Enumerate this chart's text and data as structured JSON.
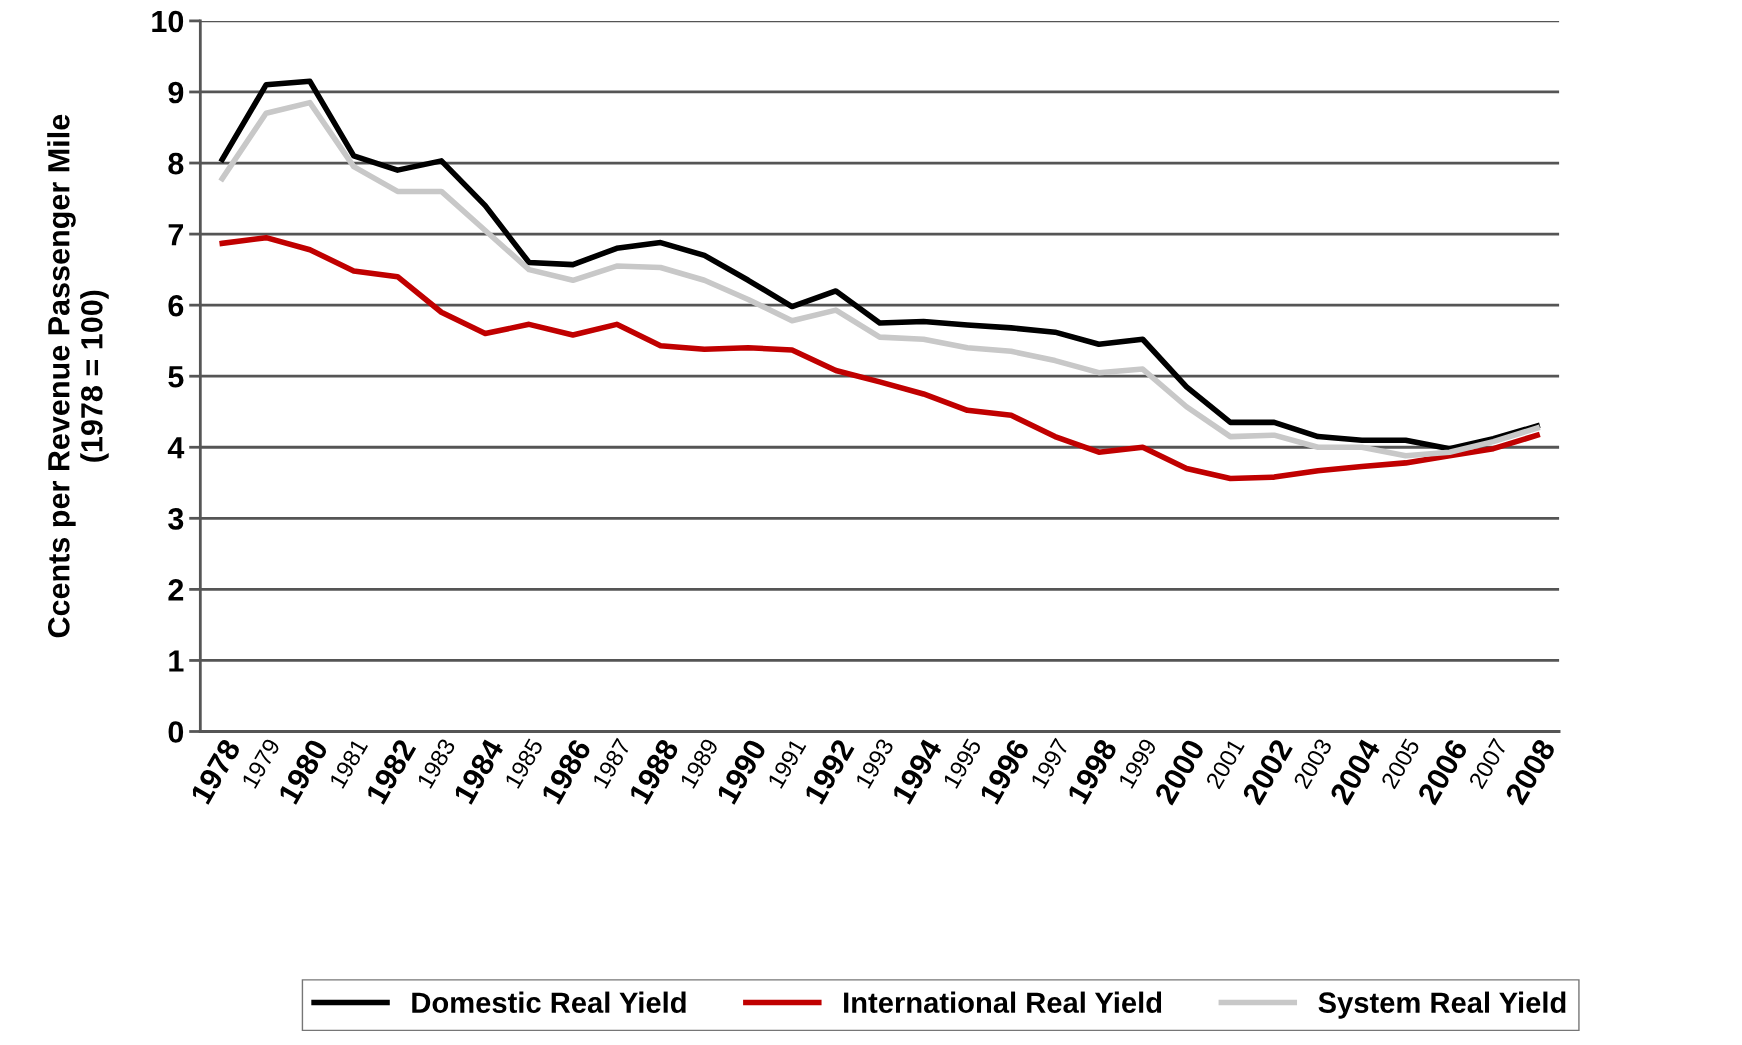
{
  "chart_data": {
    "type": "line",
    "ylabel": "Ccents per Revenue Passenger Mile\n(1978 = 100)",
    "categories": [
      "1978",
      "1979",
      "1980",
      "1981",
      "1982",
      "1983",
      "1984",
      "1985",
      "1986",
      "1987",
      "1988",
      "1989",
      "1990",
      "1991",
      "1992",
      "1993",
      "1994",
      "1995",
      "1996",
      "1997",
      "1998",
      "1999",
      "2000",
      "2001",
      "2002",
      "2003",
      "2004",
      "2005",
      "2006",
      "2007",
      "2008"
    ],
    "series": [
      {
        "name": "Domestic Real Yield",
        "color": "#000000",
        "values": [
          8.05,
          9.1,
          9.15,
          8.1,
          7.9,
          8.03,
          7.4,
          6.6,
          6.57,
          6.8,
          6.88,
          6.7,
          6.35,
          5.98,
          6.2,
          5.75,
          5.77,
          5.72,
          5.68,
          5.62,
          5.45,
          5.52,
          4.85,
          4.35,
          4.35,
          4.15,
          4.1,
          4.1,
          3.98,
          4.12,
          4.3
        ]
      },
      {
        "name": "International Real Yield",
        "color": "#c00000",
        "values": [
          6.87,
          6.95,
          6.78,
          6.48,
          6.4,
          5.9,
          5.6,
          5.73,
          5.58,
          5.73,
          5.43,
          5.38,
          5.4,
          5.37,
          5.08,
          4.92,
          4.75,
          4.52,
          4.45,
          4.15,
          3.93,
          4.0,
          3.7,
          3.56,
          3.58,
          3.67,
          3.73,
          3.78,
          3.88,
          3.98,
          4.17
        ]
      },
      {
        "name": "System Real Yield",
        "color": "#c8c8c8",
        "values": [
          7.78,
          8.7,
          8.85,
          7.95,
          7.6,
          7.6,
          7.05,
          6.5,
          6.35,
          6.55,
          6.53,
          6.35,
          6.08,
          5.78,
          5.93,
          5.55,
          5.52,
          5.4,
          5.35,
          5.22,
          5.05,
          5.1,
          4.57,
          4.15,
          4.17,
          4.0,
          4.0,
          3.88,
          3.93,
          4.08,
          4.27
        ]
      }
    ],
    "ylim": [
      0,
      10
    ],
    "yticks": [
      0,
      1,
      2,
      3,
      4,
      5,
      6,
      7,
      8,
      9,
      10
    ],
    "grid": "y",
    "legend": "bottom",
    "marker": "none",
    "line_style": "solid"
  }
}
